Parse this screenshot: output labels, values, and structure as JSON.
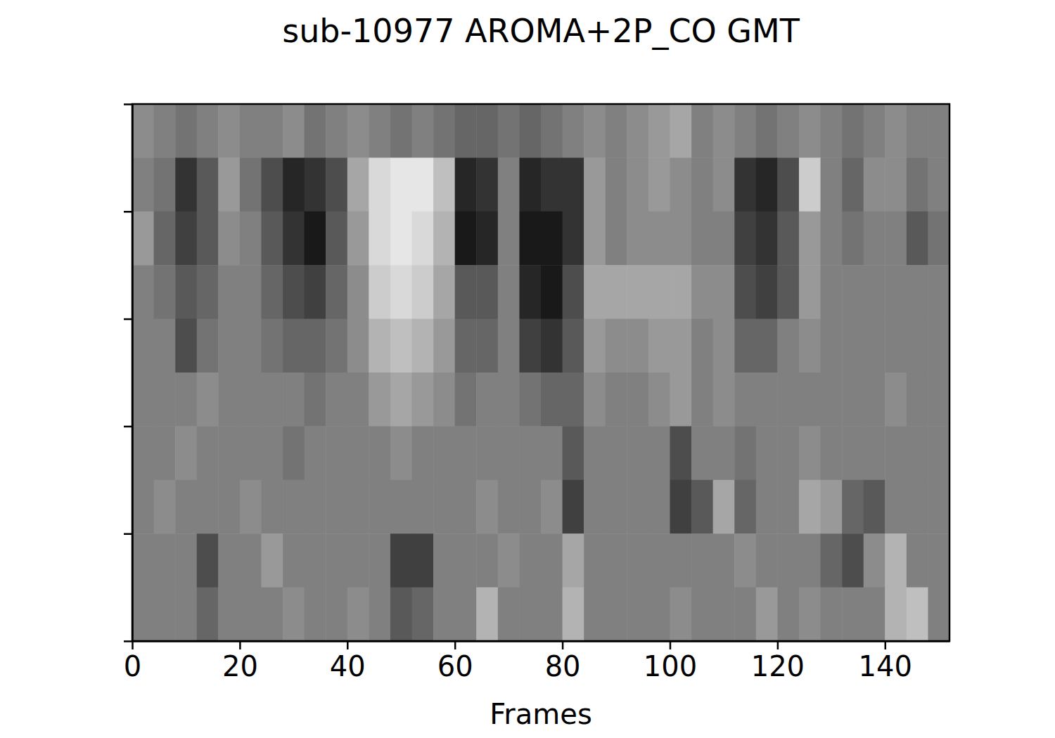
{
  "chart_data": {
    "type": "heatmap",
    "title": "sub-10977 AROMA+2P_CO GMT",
    "x_label": "Frames",
    "tick_labels": "x",
    "xlim": [
      0,
      152
    ],
    "xticks": [
      0,
      20,
      40,
      60,
      80,
      100,
      120,
      140
    ],
    "ylim": [
      0,
      5
    ],
    "yticks": [
      0,
      1,
      2,
      3,
      4,
      5
    ],
    "zlim": [
      -1,
      1
    ],
    "colors": [
      "#000000",
      "#ffffff"
    ],
    "xbins": [
      0,
      4,
      8,
      12,
      16,
      20,
      24,
      28,
      32,
      36,
      40,
      44,
      48,
      52,
      56,
      60,
      64,
      68,
      72,
      76,
      80,
      84,
      88,
      92,
      96,
      100,
      104,
      108,
      112,
      116,
      120,
      124,
      128,
      132,
      136,
      140,
      144,
      148,
      152
    ],
    "ybins": [
      0,
      0.5,
      1,
      1.5,
      2,
      2.5,
      3,
      3.5,
      4,
      4.5,
      5
    ],
    "cells": [
      [
        0.1,
        0,
        -0.1,
        0,
        0.1,
        0,
        0,
        0.1,
        -0.1,
        0,
        0.1,
        0,
        -0.1,
        0,
        -0.1,
        -0.2,
        -0.2,
        -0.1,
        -0.2,
        -0.1,
        0,
        0.1,
        0,
        0.1,
        0.2,
        0.3,
        0,
        0.1,
        0,
        -0.1,
        0,
        0.1,
        0,
        -0.1,
        0,
        0.1,
        0,
        0
      ],
      [
        0,
        -0.1,
        -0.6,
        -0.3,
        0.2,
        -0.1,
        -0.4,
        -0.7,
        -0.6,
        -0.4,
        0.3,
        0.7,
        0.8,
        0.8,
        0.5,
        -0.7,
        -0.6,
        0,
        -0.7,
        -0.6,
        -0.6,
        0.2,
        0,
        0.1,
        0.2,
        0.1,
        0,
        0.1,
        -0.6,
        -0.7,
        -0.4,
        0.6,
        0,
        -0.2,
        0.1,
        0.1,
        -0.1,
        0
      ],
      [
        0.2,
        -0.2,
        -0.5,
        -0.3,
        0.1,
        0,
        -0.3,
        -0.6,
        -0.8,
        -0.3,
        0.2,
        0.7,
        0.8,
        0.7,
        0.4,
        -0.8,
        -0.7,
        0,
        -0.8,
        -0.8,
        -0.6,
        0.2,
        0,
        0.1,
        0.1,
        0.1,
        0,
        0,
        -0.5,
        -0.6,
        -0.3,
        0.2,
        0,
        -0.1,
        0,
        0,
        -0.3,
        -0.1
      ],
      [
        0,
        -0.1,
        -0.3,
        -0.2,
        0,
        0,
        -0.2,
        -0.4,
        -0.5,
        -0.2,
        0.1,
        0.6,
        0.7,
        0.6,
        0.3,
        -0.3,
        -0.3,
        0,
        -0.7,
        -0.8,
        -0.4,
        0.3,
        0.3,
        0.3,
        0.3,
        0.3,
        0.1,
        0.1,
        -0.4,
        -0.5,
        -0.3,
        0.2,
        0,
        0,
        0,
        0,
        0,
        0
      ],
      [
        0,
        0,
        -0.4,
        -0.1,
        0,
        0,
        -0.1,
        -0.2,
        -0.2,
        -0.1,
        0.1,
        0.4,
        0.5,
        0.4,
        0.2,
        -0.2,
        -0.2,
        0,
        -0.5,
        -0.6,
        -0.3,
        0.2,
        0.1,
        0.1,
        0.2,
        0.2,
        0,
        0.1,
        -0.2,
        -0.2,
        0,
        0.1,
        0,
        0,
        0,
        0,
        0,
        0
      ],
      [
        0,
        0,
        0,
        0.1,
        0,
        0,
        0,
        0,
        -0.1,
        0,
        0,
        0.2,
        0.3,
        0.2,
        0.1,
        -0.1,
        0,
        0,
        -0.1,
        -0.2,
        -0.2,
        0.1,
        0,
        0,
        0.1,
        0.2,
        0,
        0.1,
        0,
        0,
        0,
        0,
        0,
        0,
        0,
        0.1,
        0,
        0
      ],
      [
        0,
        0,
        0.1,
        0,
        0,
        0,
        0,
        -0.1,
        0,
        0,
        0,
        0,
        0.1,
        0,
        0,
        0,
        0,
        0,
        0,
        0,
        -0.3,
        0,
        0,
        0,
        0,
        -0.4,
        0,
        0,
        -0.1,
        0,
        0,
        0.1,
        0,
        0,
        0,
        0,
        0,
        0
      ],
      [
        0,
        0.1,
        0,
        0,
        0,
        0.1,
        0,
        0,
        0,
        0,
        0,
        0,
        0,
        0,
        0,
        0,
        0.1,
        0,
        0,
        0.1,
        -0.5,
        0,
        0,
        0,
        0,
        -0.5,
        -0.3,
        0.3,
        -0.2,
        0,
        0,
        0.3,
        0.2,
        -0.2,
        -0.3,
        0,
        0,
        0
      ],
      [
        0,
        0,
        0,
        -0.4,
        0,
        0,
        0.2,
        0,
        0,
        0,
        0,
        0,
        -0.5,
        -0.5,
        0,
        0,
        0,
        0.1,
        0,
        0,
        0.3,
        0,
        0,
        0,
        0,
        0,
        0,
        0,
        0.1,
        0,
        0,
        0,
        -0.2,
        -0.4,
        0.1,
        0.4,
        0,
        0
      ],
      [
        0,
        0,
        0,
        -0.2,
        0,
        0,
        0,
        0.1,
        0,
        0,
        0.1,
        0,
        -0.3,
        -0.2,
        0,
        0,
        0.4,
        0,
        0,
        0,
        0.4,
        0,
        0,
        0,
        0,
        0.1,
        0,
        0,
        0,
        0.2,
        0,
        0.1,
        0,
        0,
        0,
        0.4,
        0.5,
        0
      ]
    ]
  }
}
